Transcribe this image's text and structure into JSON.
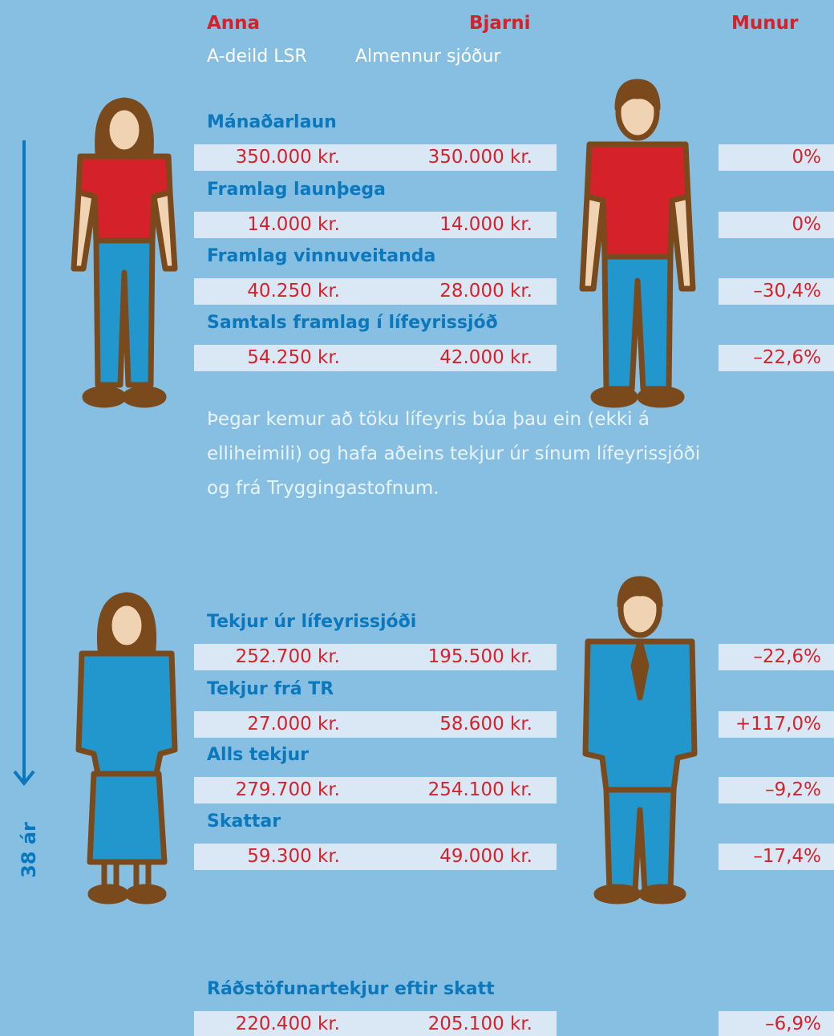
{
  "header": {
    "names": [
      "Anna",
      "Bjarni",
      "Munur"
    ],
    "funds": [
      "A-deild LSR",
      "Almennur sjóður"
    ]
  },
  "rows": [
    {
      "label": "Mánaðarlaun",
      "anna": "350.000 kr.",
      "bjarni": "350.000 kr.",
      "munur": "0%"
    },
    {
      "label": "Framlag launþega",
      "anna": "14.000 kr.",
      "bjarni": "14.000 kr.",
      "munur": "0%"
    },
    {
      "label": "Framlag vinnuveitanda",
      "anna": "40.250 kr.",
      "bjarni": "28.000 kr.",
      "munur": "–30,4%"
    },
    {
      "label": "Samtals framlag í lífeyrissjóð",
      "anna": "54.250 kr.",
      "bjarni": "42.000 kr.",
      "munur": "–22,6%"
    },
    {
      "label": "Tekjur úr lífeyrissjóði",
      "anna": "252.700 kr.",
      "bjarni": "195.500 kr.",
      "munur": "–22,6%"
    },
    {
      "label": "Tekjur frá TR",
      "anna": "27.000 kr.",
      "bjarni": "58.600 kr.",
      "munur": "+117,0%"
    },
    {
      "label": "Alls tekjur",
      "anna": "279.700 kr.",
      "bjarni": "254.100 kr.",
      "munur": "–9,2%"
    },
    {
      "label": "Skattar",
      "anna": "59.300 kr.",
      "bjarni": "49.000 kr.",
      "munur": "–17,4%"
    },
    {
      "label": "Ráðstöfunartekjur eftir skatt",
      "anna": "220.400 kr.",
      "bjarni": "205.100 kr.",
      "munur": "–6,9%"
    }
  ],
  "paragraph": [
    "Þegar kemur að töku lífeyris búa þau ein (ekki á",
    "elliheimili) og hafa aðeins tekjur úr sínum lífeyrissjóði",
    "og frá Tryggingastofnum."
  ],
  "timeline": "38 ár"
}
